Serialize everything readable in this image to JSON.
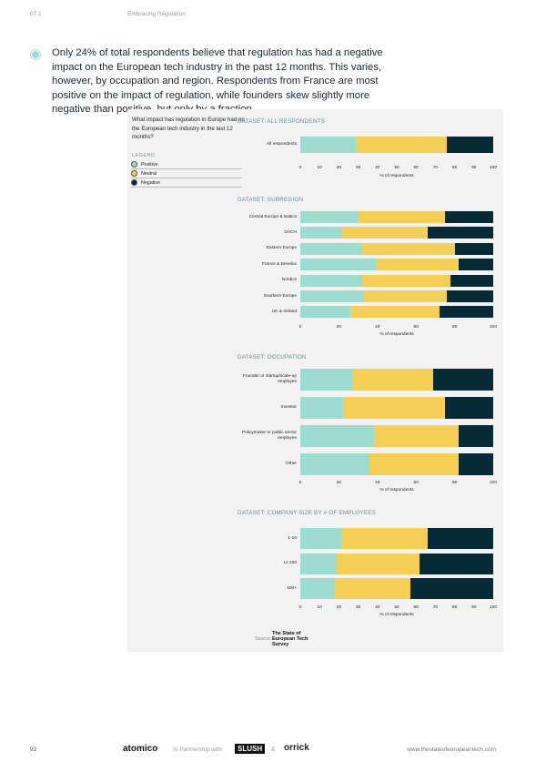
{
  "header": {
    "section": "07.1",
    "title": "Embracing Regulation"
  },
  "headline": "Only 24% of total respondents believe that regulation has had a negative impact on the European tech industry in the past 12 months. This varies, however, by occupation and region. Respondents from France are most positive on the impact of regulation, while founders skew slightly more negative than positive, but only by a fraction.",
  "question": "What impact has regulation in Europe had on the European tech industry in the last 12 months?",
  "legend": {
    "title": "LEGEND",
    "items": [
      {
        "name": "Positive",
        "color": "#9edccf"
      },
      {
        "name": "Neutral",
        "color": "#f5cf55"
      },
      {
        "name": "Negative",
        "color": "#062a36"
      }
    ]
  },
  "charts": [
    {
      "type": "bar",
      "title": "DATASET: ALL RESPONDENTS",
      "x_label": "% of respondents",
      "categories": [
        "All respondents"
      ],
      "series": [
        {
          "values": [
            29
          ]
        },
        {
          "values": [
            47
          ]
        },
        {
          "values": [
            24
          ]
        }
      ],
      "xlim": [
        0,
        100
      ],
      "xticks": [
        0,
        10,
        20,
        30,
        40,
        50,
        60,
        70,
        80,
        90,
        100
      ]
    },
    {
      "type": "bar",
      "title": "DATASET: SUBREGION",
      "x_label": "% of respondents",
      "categories": [
        "Central Europe & Baltics",
        "DACH",
        "Eastern Europe",
        "France & Benelux",
        "Nordics",
        "Southern Europe",
        "UK & Ireland"
      ],
      "series": [
        {
          "values": [
            30,
            21,
            32,
            39,
            32,
            33,
            26
          ]
        },
        {
          "values": [
            45,
            45,
            48,
            43,
            46,
            43,
            46
          ]
        },
        {
          "values": [
            25,
            34,
            20,
            18,
            22,
            24,
            28
          ]
        }
      ],
      "xlim": [
        0,
        100
      ],
      "xticks": [
        0,
        20,
        40,
        60,
        80,
        100
      ]
    },
    {
      "type": "bar",
      "title": "DATASET: OCCUPATION",
      "x_label": "% of respondents",
      "categories": [
        "Founder or startup/scale-up employee",
        "Investor",
        "Policymaker or public sector employee",
        "Other"
      ],
      "series": [
        {
          "values": [
            27,
            22,
            38,
            36
          ]
        },
        {
          "values": [
            42,
            53,
            44,
            46
          ]
        },
        {
          "values": [
            31,
            25,
            18,
            18
          ]
        }
      ],
      "xlim": [
        0,
        100
      ],
      "xticks": [
        0,
        20,
        40,
        60,
        80,
        100
      ]
    },
    {
      "type": "bar",
      "title": "DATASET: COMPANY SIZE BY # OF EMPLOYEES",
      "x_label": "% of respondents",
      "categories": [
        "1-10",
        "11-100",
        "100+"
      ],
      "series": [
        {
          "values": [
            21,
            19,
            18
          ]
        },
        {
          "values": [
            45,
            43,
            39
          ]
        },
        {
          "values": [
            34,
            38,
            43
          ]
        }
      ],
      "xlim": [
        0,
        100
      ],
      "xticks": [
        0,
        10,
        20,
        30,
        40,
        50,
        60,
        70,
        80,
        90,
        100
      ]
    }
  ],
  "source": {
    "label": "Source:",
    "logo": "The State of European Tech Survey"
  },
  "footer": {
    "page": "92",
    "brand": "atomico",
    "partnership": "In Partnership with",
    "partner1": "SLUSH",
    "and": "&",
    "partner2": "orrick",
    "url": "www.thestateofeuropeantech.com"
  }
}
